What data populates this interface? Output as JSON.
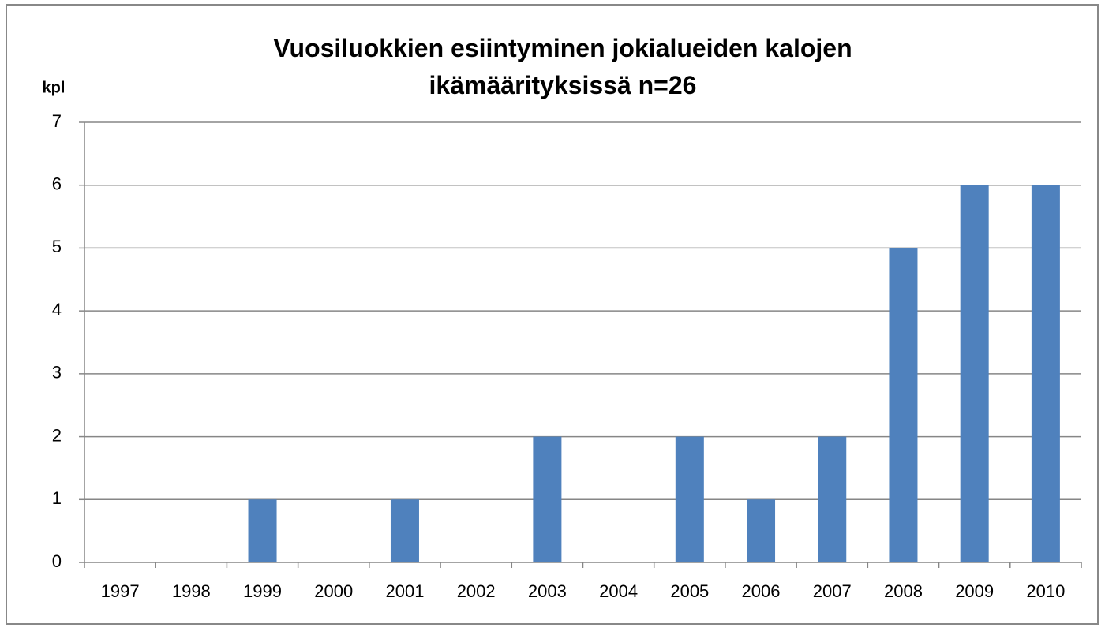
{
  "chart_data": {
    "type": "bar",
    "title": "Vuosiluokkien esiintyminen jokialueiden kalojen ikämäärityksissä n=26",
    "y_label": "kpl",
    "categories": [
      "1997",
      "1998",
      "1999",
      "2000",
      "2001",
      "2002",
      "2003",
      "2004",
      "2005",
      "2006",
      "2007",
      "2008",
      "2009",
      "2010"
    ],
    "values": [
      0,
      0,
      1,
      0,
      1,
      0,
      2,
      0,
      2,
      1,
      2,
      5,
      6,
      6
    ],
    "color": "#4f81bd",
    "ylim": [
      0,
      7
    ],
    "yticks": [
      0,
      1,
      2,
      3,
      4,
      5,
      6,
      7
    ],
    "grid": true
  }
}
